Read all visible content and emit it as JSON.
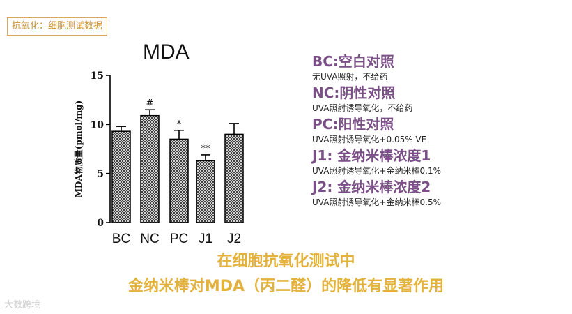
{
  "header_tag": "抗氧化：细胞测试数据",
  "chart_data": {
    "type": "bar",
    "title": "MDA",
    "ylabel": "MDA物质量(pmol/mg)",
    "xlabel": "",
    "ylim": [
      0,
      15
    ],
    "yticks": [
      0,
      5,
      10,
      15
    ],
    "categories": [
      "BC",
      "NC",
      "PC",
      "J1",
      "J2"
    ],
    "values": [
      9.3,
      10.9,
      8.5,
      6.3,
      9.0
    ],
    "errors": [
      0.5,
      0.6,
      0.9,
      0.6,
      1.1
    ],
    "annotations": [
      "",
      "#",
      "*",
      "**",
      ""
    ],
    "grid": false,
    "fill": "crosshatch"
  },
  "legend": [
    {
      "title": "BC:空白对照",
      "desc": "无UVA照射，不给药"
    },
    {
      "title": "NC:阴性对照",
      "desc": "UVA照射诱导氧化，不给药"
    },
    {
      "title": "PC:阳性对照",
      "desc": "UVA照射诱导氧化+0.05% VE"
    },
    {
      "title": "J1: 金纳米棒浓度1",
      "desc": "UVA照射诱导氧化+金纳米棒0.1%"
    },
    {
      "title": "J2: 金纳米棒浓度2",
      "desc": "UVA照射诱导氧化+金纳米棒0.5%"
    }
  ],
  "conclusion": {
    "line1": "在细胞抗氧化测试中",
    "line2": "金纳米棒对MDA（丙二醛）的降低有显著作用"
  },
  "watermark": "大数跨境"
}
